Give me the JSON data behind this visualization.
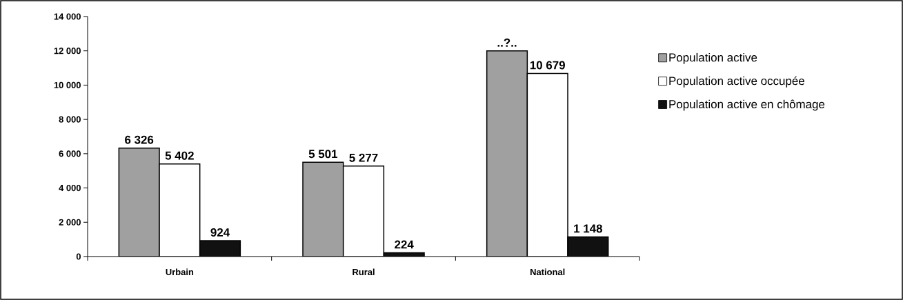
{
  "chart_data": {
    "type": "bar",
    "categories": [
      "Urbain",
      "Rural",
      "National"
    ],
    "series": [
      {
        "name": "Population active",
        "color": "#a0a0a0",
        "values": [
          6326,
          5501,
          12000
        ],
        "value_labels": [
          "6 326",
          "5 501",
          "..?.."
        ]
      },
      {
        "name": "Population active occupée",
        "color": "#ffffff",
        "values": [
          5402,
          5277,
          10679
        ],
        "value_labels": [
          "5 402",
          "5 277",
          "10 679"
        ]
      },
      {
        "name": "Population active en chômage",
        "color": "#111111",
        "values": [
          924,
          224,
          1148
        ],
        "value_labels": [
          "924",
          "224",
          "1 148"
        ]
      }
    ],
    "ylim": [
      0,
      14000
    ],
    "yticks": [
      {
        "value": 0,
        "label": "0"
      },
      {
        "value": 2000,
        "label": "2 000"
      },
      {
        "value": 4000,
        "label": "4 000"
      },
      {
        "value": 6000,
        "label": "6 000"
      },
      {
        "value": 8000,
        "label": "8 000"
      },
      {
        "value": 10000,
        "label": "10 000"
      },
      {
        "value": 12000,
        "label": "12 000"
      },
      {
        "value": 14000,
        "label": "14 000"
      }
    ],
    "legend": "right",
    "grid": false
  }
}
